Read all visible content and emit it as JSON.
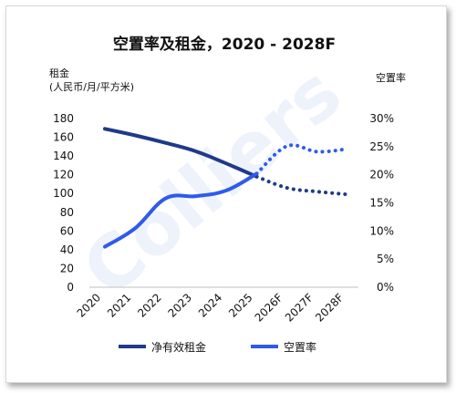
{
  "chart_data": {
    "type": "line",
    "title": "空置率及租金，2020 - 2028F",
    "watermark": "Colliers",
    "y_left": {
      "label_line1": "租金",
      "label_line2": "(人民币/月/平方米)",
      "ticks": [
        "180",
        "160",
        "140",
        "120",
        "100",
        "80",
        "60",
        "40",
        "20",
        "0"
      ],
      "range": [
        0,
        180
      ]
    },
    "y_right": {
      "label": "空置率",
      "ticks": [
        "30%",
        "25%",
        "20%",
        "15%",
        "10%",
        "5%",
        "0%"
      ],
      "range": [
        0,
        30
      ]
    },
    "categories": [
      "2020",
      "2021",
      "2022",
      "2023",
      "2024",
      "2025",
      "2026F",
      "2027F",
      "2028F"
    ],
    "forecast_from_index": 5,
    "series": [
      {
        "name": "净有效租金",
        "axis": "left",
        "color": "#1f3a8a",
        "values": [
          169,
          162,
          154,
          145,
          132,
          118,
          106,
          102,
          99
        ]
      },
      {
        "name": "空置率",
        "axis": "right",
        "color": "#2f5bea",
        "values": [
          7.2,
          10.5,
          15.8,
          16.2,
          17.2,
          20.2,
          25.1,
          24.1,
          24.6
        ]
      }
    ]
  }
}
